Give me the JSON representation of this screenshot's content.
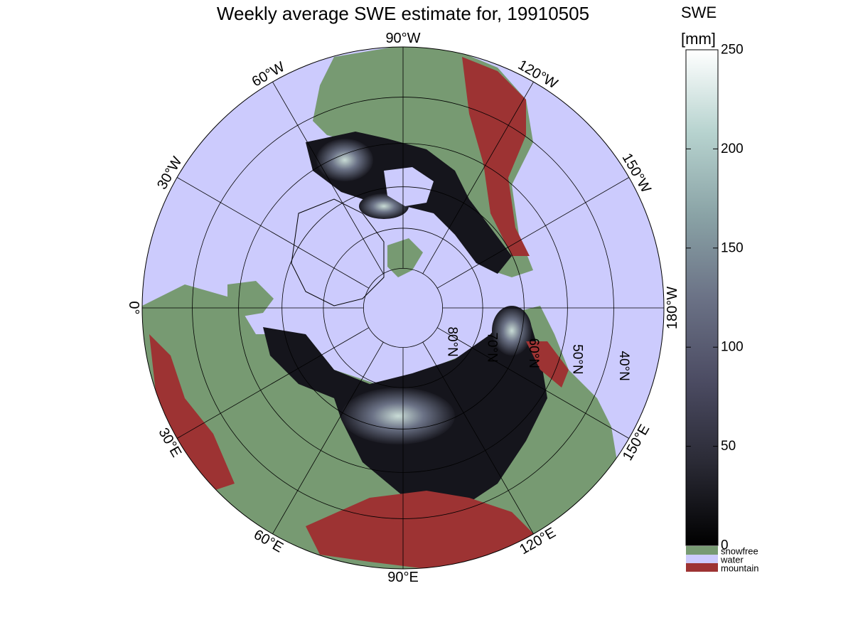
{
  "title": "Weekly average SWE estimate for, 19910505",
  "colorbar": {
    "label_line1": "SWE",
    "label_line2": "[mm]",
    "min": 0,
    "max": 250,
    "ticks": [
      0,
      50,
      100,
      150,
      200,
      250
    ],
    "ramp": [
      "#000000",
      "#2a2a35",
      "#4c4c63",
      "#6b7286",
      "#8aa3a6",
      "#b7d3cf",
      "#ffffff"
    ]
  },
  "categories": [
    {
      "label": "snowfree",
      "color": "#779a72"
    },
    {
      "label": "water",
      "color": "#cccbfd"
    },
    {
      "label": "mountain",
      "color": "#9d3333"
    }
  ],
  "map": {
    "projection": "north polar stereographic",
    "longitude_labels": [
      {
        "text": "0°",
        "lon": 0
      },
      {
        "text": "30°E",
        "lon": 30
      },
      {
        "text": "60°E",
        "lon": 60
      },
      {
        "text": "90°E",
        "lon": 90
      },
      {
        "text": "120°E",
        "lon": 120
      },
      {
        "text": "150°E",
        "lon": 150
      },
      {
        "text": "180°W",
        "lon": 180
      },
      {
        "text": "150°W",
        "lon": -150
      },
      {
        "text": "120°W",
        "lon": -120
      },
      {
        "text": "90°W",
        "lon": -90
      },
      {
        "text": "60°W",
        "lon": -60
      },
      {
        "text": "30°W",
        "lon": -30
      }
    ],
    "latitude_labels": [
      {
        "text": "80°N",
        "lat": 80
      },
      {
        "text": "70°N",
        "lat": 70
      },
      {
        "text": "60°N",
        "lat": 60
      },
      {
        "text": "50°N",
        "lat": 50
      },
      {
        "text": "40°N",
        "lat": 40
      }
    ],
    "grid_latitudes": [
      80,
      70,
      60,
      50,
      40
    ],
    "grid_longitudes": [
      0,
      30,
      60,
      90,
      120,
      150,
      180,
      210,
      240,
      270,
      300,
      330
    ]
  }
}
